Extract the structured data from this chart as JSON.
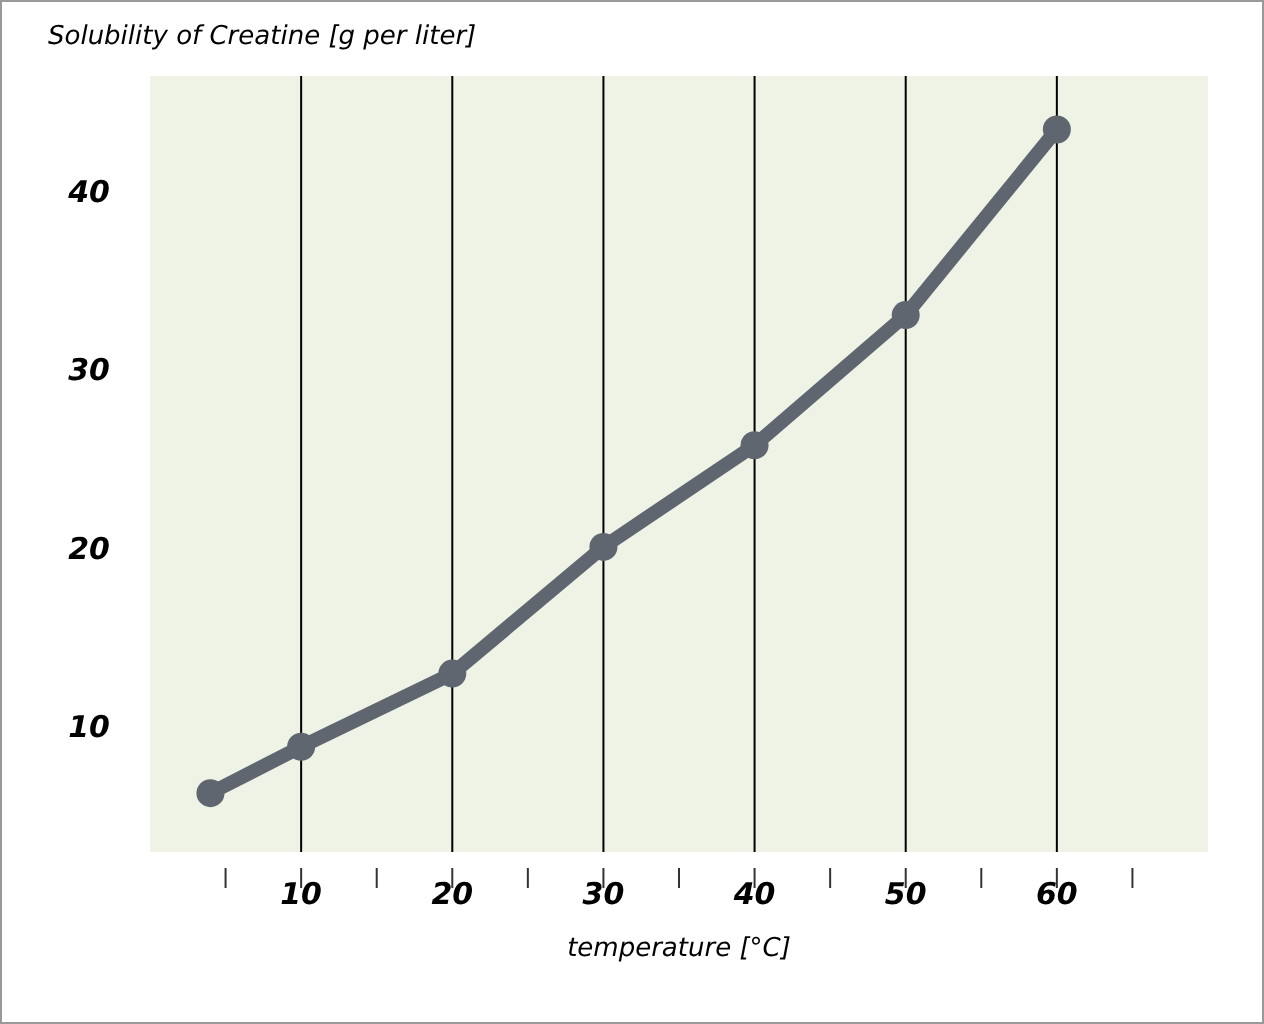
{
  "chart_data": {
    "type": "line",
    "ylabel": "Solubility of Creatine [g per liter]",
    "xlabel": "temperature [°C]",
    "x": [
      4,
      10,
      20,
      30,
      40,
      50,
      60
    ],
    "series": [
      {
        "color": "#5f6670",
        "values": [
          6.3,
          8.9,
          13,
          20.1,
          25.8,
          33.1,
          43.5
        ]
      }
    ],
    "xlim": [
      0,
      70
    ],
    "ylim": [
      3,
      46.5
    ],
    "xticks": [
      {
        "value": 5,
        "label": null
      },
      10,
      {
        "value": 15,
        "label": null
      },
      20,
      {
        "value": 25,
        "label": null
      },
      30,
      {
        "value": 35,
        "label": null
      },
      40,
      {
        "value": 45,
        "label": null
      },
      50,
      {
        "value": 55,
        "label": null
      },
      60,
      {
        "value": 65,
        "label": null
      }
    ],
    "yticks": [
      10,
      20,
      30,
      40
    ],
    "grid": "x",
    "marker": "circle",
    "line_style": "solid"
  }
}
